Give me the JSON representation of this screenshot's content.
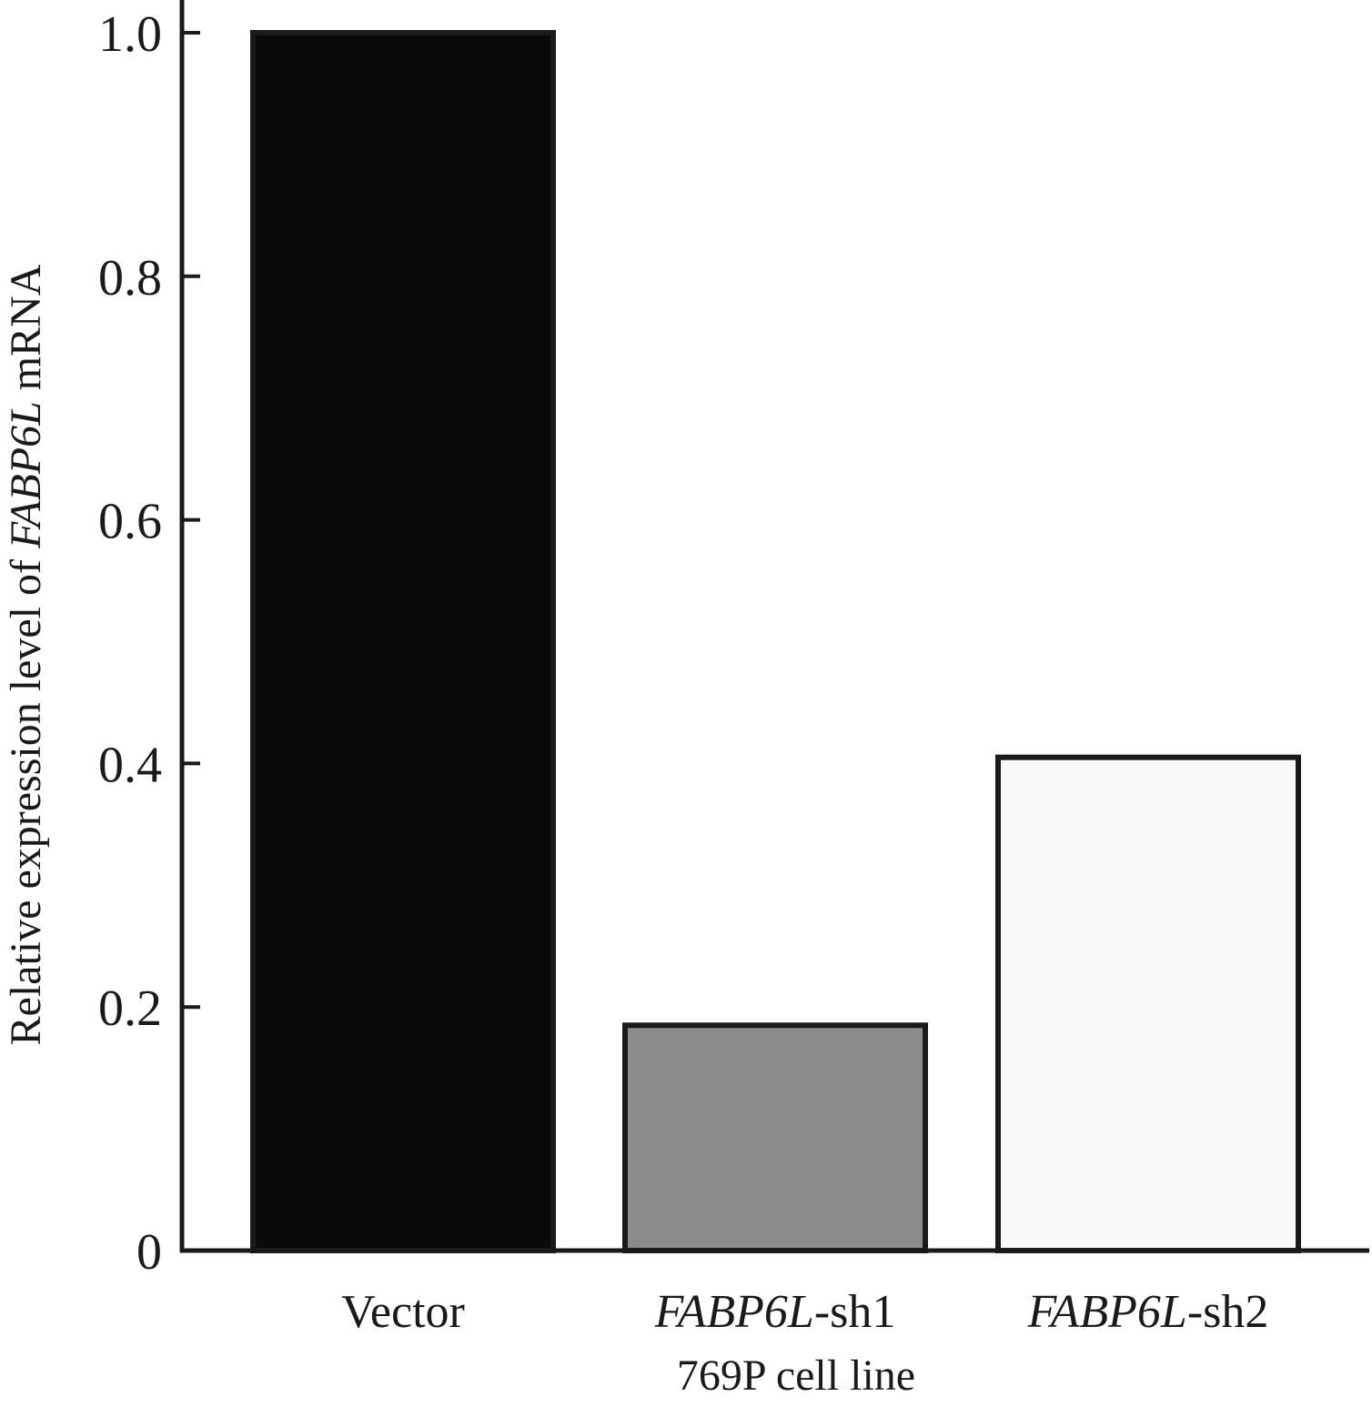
{
  "chart_data": {
    "type": "bar",
    "categories": [
      {
        "italic": "",
        "plain": "Vector"
      },
      {
        "italic": "FABP6L",
        "plain": "-sh1"
      },
      {
        "italic": "FABP6L",
        "plain": "-sh2"
      }
    ],
    "values": [
      1.0,
      0.185,
      0.405
    ],
    "colors": [
      "#0a0a0a",
      "#8c8c8c",
      "#f8f8f8"
    ],
    "xlabel": "769P cell line",
    "ylabel": {
      "prefix": "Relative expression level of ",
      "italic": "FABP6L",
      "suffix": " mRNA"
    },
    "ylim": [
      0,
      1.0
    ],
    "yticks": [
      0,
      0.2,
      0.4,
      0.6,
      0.8,
      1.0
    ],
    "ytick_labels": [
      "0",
      "0.2",
      "0.4",
      "0.6",
      "0.8",
      "1.0"
    ],
    "grid": false
  }
}
